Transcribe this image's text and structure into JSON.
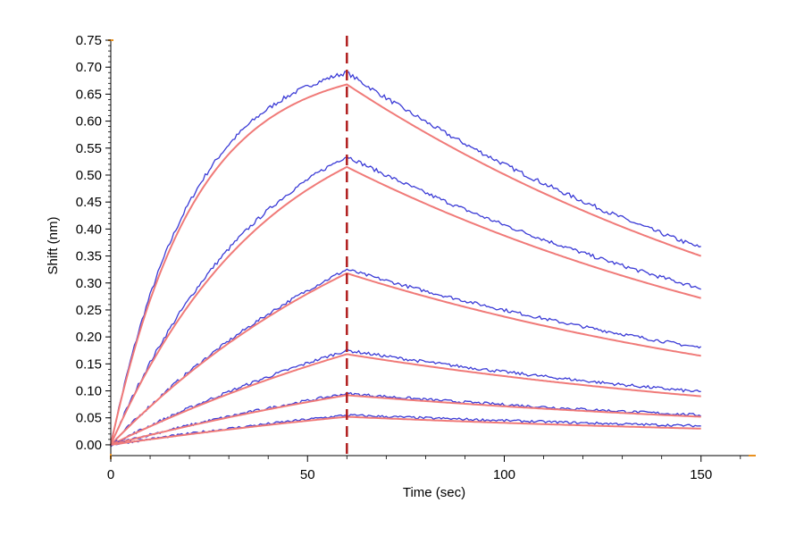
{
  "chart_data": {
    "type": "line",
    "title": "",
    "xlabel": "Time (sec)",
    "ylabel": "Shift (nm)",
    "xlim": [
      0,
      163
    ],
    "ylim": [
      -0.02,
      0.75
    ],
    "x_ticks": [
      0,
      50,
      100,
      150
    ],
    "y_ticks": [
      0.0,
      0.05,
      0.1,
      0.15,
      0.2,
      0.25,
      0.3,
      0.35,
      0.4,
      0.45,
      0.5,
      0.55,
      0.6,
      0.65,
      0.7,
      0.75
    ],
    "y_tick_labels": [
      "0.00",
      "0.05",
      "0.10",
      "0.15",
      "0.20",
      "0.25",
      "0.30",
      "0.35",
      "0.40",
      "0.45",
      "0.50",
      "0.55",
      "0.60",
      "0.65",
      "0.70",
      "0.75"
    ],
    "x_tick_labels": [
      "0",
      "50",
      "100",
      "150"
    ],
    "grid": false,
    "legend": "none",
    "colors": {
      "data": "#3b3bd6",
      "fit": "#f07a78",
      "marker": "#b01e1e",
      "axis_accent": "#e8901e"
    },
    "association_end": 60,
    "series": [
      {
        "peak": 0.69,
        "fit_peak": 0.668,
        "end": 0.365,
        "fit_end": 0.35,
        "tau": 21,
        "noise": 0.004
      },
      {
        "peak": 0.535,
        "fit_peak": 0.515,
        "end": 0.29,
        "fit_end": 0.272,
        "tau": 40,
        "noise": 0.0035
      },
      {
        "peak": 0.325,
        "fit_peak": 0.318,
        "end": 0.18,
        "fit_end": 0.165,
        "tau": 80,
        "noise": 0.003
      },
      {
        "peak": 0.175,
        "fit_peak": 0.168,
        "end": 0.098,
        "fit_end": 0.09,
        "tau": 120,
        "noise": 0.0028
      },
      {
        "peak": 0.095,
        "fit_peak": 0.092,
        "end": 0.055,
        "fit_end": 0.052,
        "tau": 140,
        "noise": 0.0025
      },
      {
        "peak": 0.055,
        "fit_peak": 0.052,
        "end": 0.035,
        "fit_end": 0.03,
        "tau": 160,
        "noise": 0.0022
      }
    ]
  }
}
